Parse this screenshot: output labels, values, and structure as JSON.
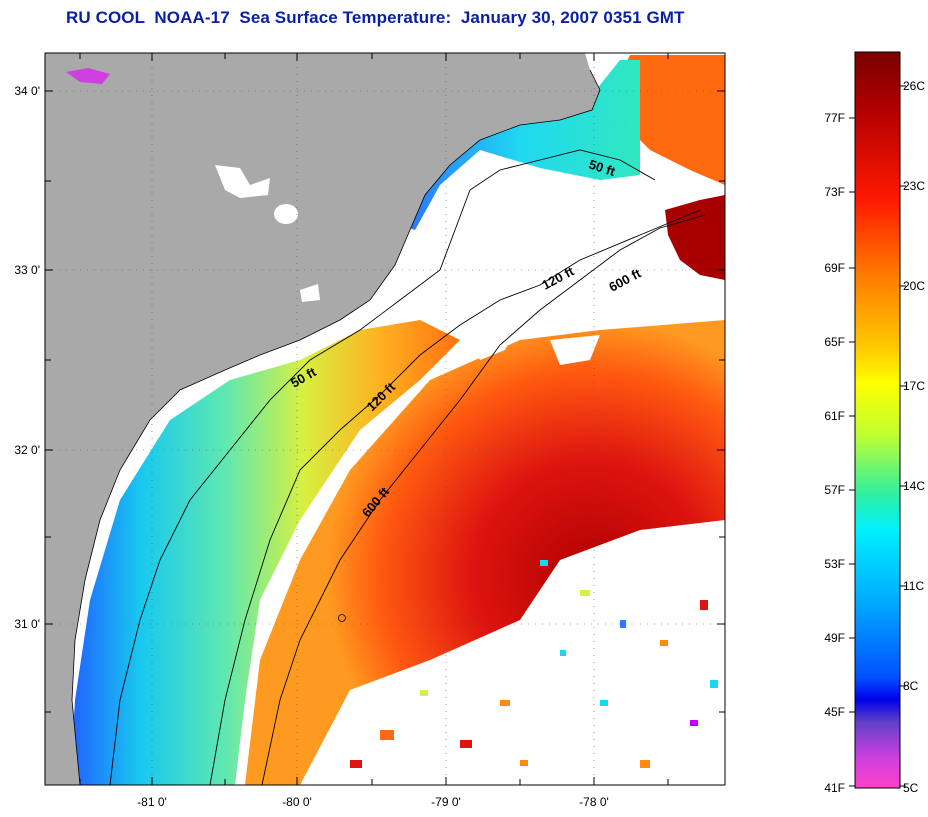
{
  "title": "RU COOL  NOAA-17  Sea Surface Temperature:  January 30, 2007 0351 GMT",
  "map": {
    "lat_labels": [
      "34 0'",
      "33 0'",
      "32 0'",
      "31 0'"
    ],
    "lon_labels": [
      "-81 0'",
      "-80 0'",
      "-79 0'",
      "-78 0'"
    ],
    "lat_ticks_deg": [
      34.0,
      33.5,
      33.0,
      32.5,
      32.0,
      31.5,
      31.0,
      30.5
    ],
    "lon_ticks_deg": [
      -81.0,
      -80.5,
      -80.0,
      -79.5,
      -79.0,
      -78.5,
      -78.0
    ],
    "contours": [
      {
        "label": "50 ft",
        "depth": "50 ft"
      },
      {
        "label": "120 ft",
        "depth": "120 ft"
      },
      {
        "label": "600 ft",
        "depth": "600 ft"
      },
      {
        "label": "50 ft",
        "depth": "50 ft"
      },
      {
        "label": "120 ft",
        "depth": "120 ft"
      },
      {
        "label": "600 ft",
        "depth": "600 ft"
      }
    ],
    "colors": {
      "land": "#a9a9a9",
      "cloud": "#ffffff",
      "cold": "#2a7bff",
      "cool": "#18d8ef",
      "mild": "#d8f040",
      "warm": "#ff8a10",
      "hot": "#dd1410",
      "hottest": "#a00000"
    }
  },
  "colorbar": {
    "fahrenheit_labels": [
      "77F",
      "73F",
      "69F",
      "65F",
      "61F",
      "57F",
      "53F",
      "49F",
      "45F",
      "41F"
    ],
    "celsius_labels": [
      "26C",
      "23C",
      "20C",
      "17C",
      "14C",
      "11C",
      "8C",
      "5C"
    ],
    "gradient_stops": [
      "#800000",
      "#c00000",
      "#ff2000",
      "#ff7a00",
      "#ffc000",
      "#ffff00",
      "#b0ff30",
      "#20f0b0",
      "#00e0ff",
      "#00a0ff",
      "#0040ff",
      "#0000d0",
      "#8040c0",
      "#c040e0",
      "#ff40c0"
    ]
  }
}
